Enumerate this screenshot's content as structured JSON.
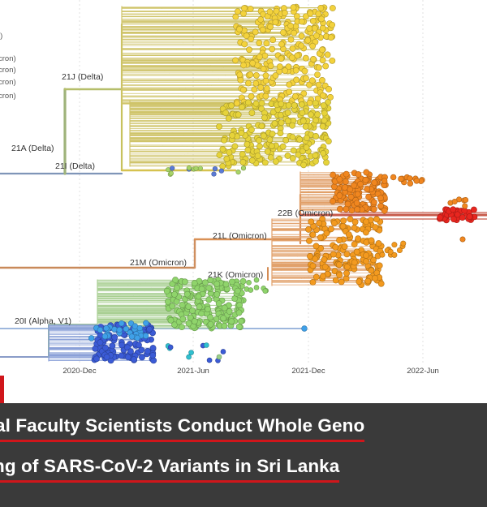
{
  "chart_data": {
    "type": "scatter",
    "title": "",
    "xlabel": "",
    "ylabel": "",
    "x_ticks": [
      "2020-Dec",
      "2021-Jun",
      "2021-Dec",
      "2022-Jun"
    ],
    "clades": [
      {
        "name": "21J (Delta)",
        "color": "#f3d23c"
      },
      {
        "name": "21I (Delta)",
        "color": "#e6d33a"
      },
      {
        "name": "21A (Delta)",
        "color": "#c8c84e"
      },
      {
        "name": "22B (Omicron)",
        "color": "#e8261f"
      },
      {
        "name": "21L (Omicron)",
        "color": "#f0861f"
      },
      {
        "name": "21K (Omicron)",
        "color": "#f39a1f"
      },
      {
        "name": "21M (Omicron)",
        "color": "#d08a6e"
      },
      {
        "name": "20I (Alpha, V1)",
        "color": "#8fd46b"
      }
    ],
    "legend_partial": [
      "i)",
      "cron)",
      "cron)",
      "cron)",
      "cron)"
    ],
    "grid": true
  },
  "caption": {
    "line1": "al Faculty Scientists Conduct Whole Geno",
    "line2": "ng of SARS-CoV-2 Variants in Sri Lanka"
  },
  "colors": {
    "caption_bg": "#3a3a3a",
    "accent": "#d0161b"
  }
}
